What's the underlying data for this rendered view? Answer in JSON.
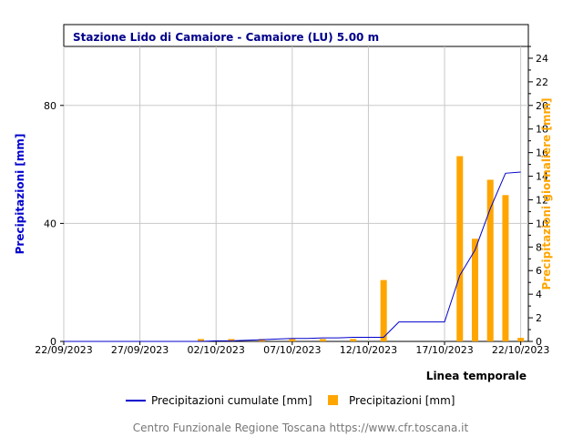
{
  "chart_data": {
    "type": "bar",
    "title": "Stazione Lido di Camaiore - Camaiore (LU) 5.00 m",
    "xlabel": "Linea temporale",
    "ylabel_left": "Precipitazioni [mm]",
    "ylabel_right": "Precipitazioni giornaliere [mm]",
    "x_ticks": [
      "22/09/2023",
      "27/09/2023",
      "02/10/2023",
      "07/10/2023",
      "12/10/2023",
      "17/10/2023",
      "22/10/2023"
    ],
    "y_left_ticks": [
      "0",
      "40",
      "80"
    ],
    "y_right_ticks": [
      "0",
      "2",
      "4",
      "6",
      "8",
      "10",
      "12",
      "14",
      "16",
      "18",
      "20",
      "22",
      "24"
    ],
    "ylim_left": [
      0,
      100
    ],
    "ylim_right": [
      0,
      25
    ],
    "grid": true,
    "legend_placement": "bottom",
    "series": [
      {
        "name": "Precipitazioni cumulate [mm]",
        "type": "line",
        "axis": "left",
        "color": "#0000cd",
        "points": [
          [
            "2023-09-22",
            0
          ],
          [
            "2023-10-01",
            0
          ],
          [
            "2023-10-02",
            0.2
          ],
          [
            "2023-10-03",
            0.2
          ],
          [
            "2023-10-04",
            0.4
          ],
          [
            "2023-10-05",
            0.6
          ],
          [
            "2023-10-06",
            0.8
          ],
          [
            "2023-10-07",
            1.0
          ],
          [
            "2023-10-08",
            1.0
          ],
          [
            "2023-10-09",
            1.2
          ],
          [
            "2023-10-10",
            1.2
          ],
          [
            "2023-10-11",
            1.4
          ],
          [
            "2023-10-12",
            1.4
          ],
          [
            "2023-10-13",
            1.4
          ],
          [
            "2023-10-14",
            6.6
          ],
          [
            "2023-10-15",
            6.6
          ],
          [
            "2023-10-16",
            6.6
          ],
          [
            "2023-10-17",
            6.6
          ],
          [
            "2023-10-18",
            22.4
          ],
          [
            "2023-10-19",
            31
          ],
          [
            "2023-10-20",
            45
          ],
          [
            "2023-10-21",
            57
          ],
          [
            "2023-10-22",
            57.4
          ]
        ]
      },
      {
        "name": "Precipitazioni [mm]",
        "type": "bar",
        "axis": "right",
        "color": "#ffa500",
        "points": [
          [
            "2023-10-01",
            0.2
          ],
          [
            "2023-10-03",
            0.2
          ],
          [
            "2023-10-05",
            0.2
          ],
          [
            "2023-10-07",
            0.2
          ],
          [
            "2023-10-09",
            0.2
          ],
          [
            "2023-10-11",
            0.2
          ],
          [
            "2023-10-13",
            5.2
          ],
          [
            "2023-10-18",
            15.7
          ],
          [
            "2023-10-19",
            8.7
          ],
          [
            "2023-10-20",
            13.7
          ],
          [
            "2023-10-21",
            12.4
          ],
          [
            "2023-10-22",
            0.3
          ]
        ]
      }
    ]
  },
  "footer": "Centro Funzionale Regione Toscana https://www.cfr.toscana.it"
}
